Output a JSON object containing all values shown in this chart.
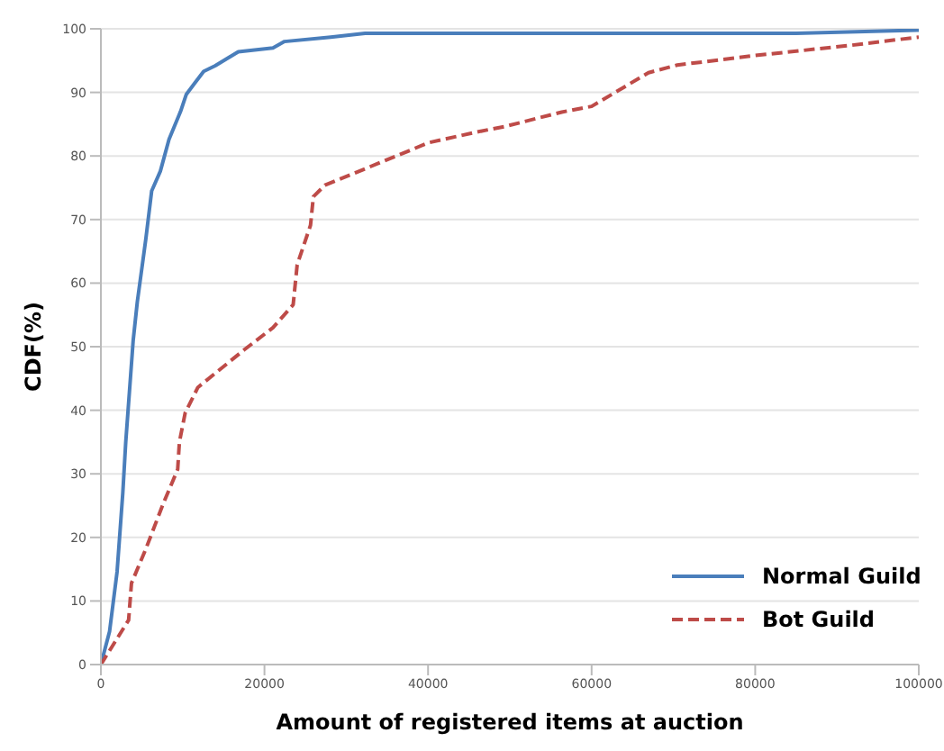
{
  "chart_data": {
    "type": "line",
    "xlabel": "Amount of registered items at auction",
    "ylabel": "CDF(%)",
    "xlim": [
      0,
      100000
    ],
    "xticks": [
      0,
      20000,
      40000,
      60000,
      80000,
      100000
    ],
    "ylim": [
      0,
      100
    ],
    "yticks": [
      0,
      10,
      20,
      30,
      40,
      50,
      60,
      70,
      80,
      90,
      100
    ],
    "grid": "y",
    "legend": "bottom right",
    "marker": "none",
    "series": [
      {
        "name": "Normal Guild",
        "color": "#4a7ebb",
        "line_style": "solid",
        "x": [
          0,
          1060,
          1980,
          2680,
          3040,
          3950,
          4450,
          5500,
          6210,
          7270,
          8330,
          9740,
          10450,
          11500,
          12570,
          13980,
          16800,
          21040,
          22450,
          28100,
          32300,
          60000,
          85000,
          100000
        ],
        "values": [
          0,
          5.2,
          14.6,
          27,
          35,
          51,
          57,
          67,
          74.5,
          77.6,
          82.6,
          87,
          89.7,
          91.5,
          93.3,
          94.2,
          96.4,
          97,
          98,
          98.7,
          99.3,
          99.3,
          99.3,
          99.8
        ]
      },
      {
        "name": "Bot Guild",
        "color": "#be4b48",
        "line_style": "dashed",
        "x": [
          0,
          3390,
          3740,
          5500,
          7620,
          9390,
          9600,
          10310,
          11860,
          17510,
          21040,
          23510,
          24000,
          25630,
          25980,
          27390,
          32330,
          40100,
          46450,
          49280,
          56350,
          60000,
          63410,
          66950,
          70470,
          80000,
          91650,
          100000
        ],
        "values": [
          0,
          7,
          12.8,
          18.2,
          25.3,
          30.7,
          35,
          39.6,
          43.6,
          49.5,
          53,
          56.6,
          62.9,
          69.1,
          73.6,
          75.4,
          78,
          82.1,
          83.9,
          84.6,
          86.9,
          87.8,
          90.4,
          93.1,
          94.3,
          95.8,
          97.4,
          98.7
        ]
      }
    ]
  }
}
